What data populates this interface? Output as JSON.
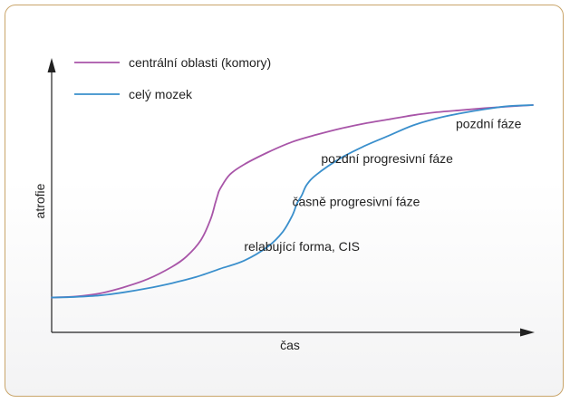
{
  "colors": {
    "central": "#a855a8",
    "whole": "#3a8fcc",
    "axis": "#222222",
    "frame": "#c9a56a"
  },
  "chart_data": {
    "type": "line",
    "title": "",
    "xlabel": "čas",
    "ylabel": "atrofie",
    "grid": false,
    "legend_position": "top-left",
    "series": [
      {
        "name": "centrální oblasti (komory)",
        "x": [
          0,
          5,
          10,
          15,
          20,
          25,
          28,
          31,
          33,
          34,
          34.5,
          35,
          37,
          40,
          45,
          50,
          55,
          60,
          65,
          70,
          75,
          80,
          85,
          90,
          95,
          100
        ],
        "y": [
          2,
          2.5,
          4,
          7,
          11,
          17,
          22,
          30,
          40,
          48,
          52,
          55,
          62,
          67,
          73,
          78,
          81.5,
          84.5,
          87,
          89,
          91,
          92.5,
          93.5,
          94.5,
          95.3,
          96
        ]
      },
      {
        "name": "celý mozek",
        "x": [
          0,
          5,
          10,
          15,
          20,
          25,
          30,
          35,
          40,
          45,
          48,
          50,
          51,
          52,
          53,
          55,
          60,
          65,
          70,
          75,
          80,
          85,
          90,
          95,
          100
        ],
        "y": [
          2,
          2.3,
          3,
          4.5,
          6.5,
          9,
          12,
          16,
          20,
          27,
          34,
          42,
          48,
          52,
          57,
          62,
          70,
          76,
          81,
          86,
          89.5,
          92,
          94,
          95.5,
          96
        ]
      }
    ],
    "annotations": [
      {
        "text": "pozdní fáze",
        "x": 84,
        "y": 87
      },
      {
        "text": "pozdní progresivní fáze",
        "x": 56,
        "y": 70
      },
      {
        "text": "časně progresivní fáze",
        "x": 50,
        "y": 49
      },
      {
        "text": "relabující forma, CIS",
        "x": 40,
        "y": 27
      }
    ]
  }
}
